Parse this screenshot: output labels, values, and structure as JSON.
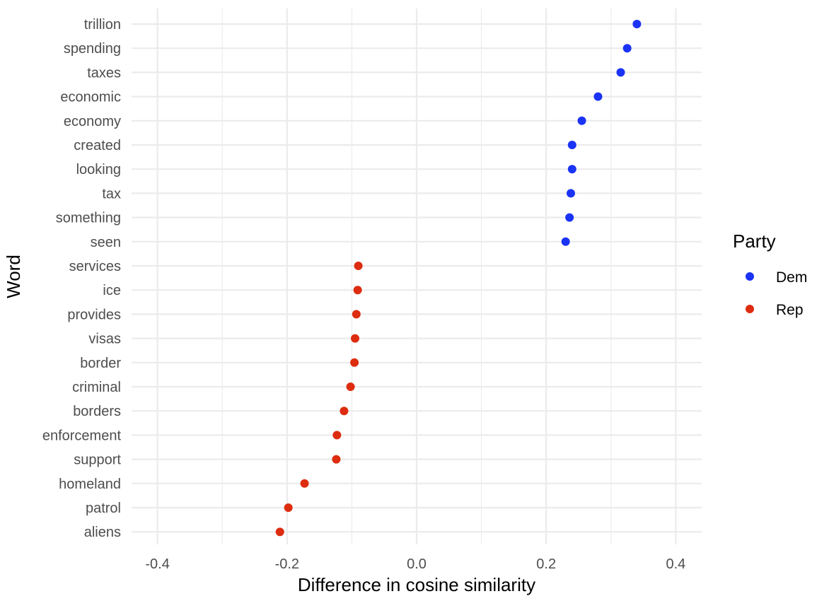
{
  "chart_data": {
    "type": "scatter",
    "title": "",
    "xlabel": "Difference in cosine similarity",
    "ylabel": "Word",
    "xlim": [
      -0.44,
      0.44
    ],
    "x_ticks": [
      -0.4,
      -0.2,
      0.0,
      0.2,
      0.4
    ],
    "x_tick_labels": [
      "-0.4",
      "-0.2",
      "0.0",
      "0.2",
      "0.4"
    ],
    "grid": true,
    "legend": {
      "title": "Party",
      "position": "right",
      "entries": [
        {
          "label": "Dem",
          "color": "#1a33f5"
        },
        {
          "label": "Rep",
          "color": "#dd2c0f"
        }
      ]
    },
    "categories": [
      "trillion",
      "spending",
      "taxes",
      "economic",
      "economy",
      "created",
      "looking",
      "tax",
      "something",
      "seen",
      "services",
      "ice",
      "provides",
      "visas",
      "border",
      "criminal",
      "borders",
      "enforcement",
      "support",
      "homeland",
      "patrol",
      "aliens"
    ],
    "points": [
      {
        "word": "trillion",
        "x": 0.34,
        "party": "Dem"
      },
      {
        "word": "spending",
        "x": 0.325,
        "party": "Dem"
      },
      {
        "word": "taxes",
        "x": 0.315,
        "party": "Dem"
      },
      {
        "word": "economic",
        "x": 0.28,
        "party": "Dem"
      },
      {
        "word": "economy",
        "x": 0.255,
        "party": "Dem"
      },
      {
        "word": "created",
        "x": 0.24,
        "party": "Dem"
      },
      {
        "word": "looking",
        "x": 0.24,
        "party": "Dem"
      },
      {
        "word": "tax",
        "x": 0.238,
        "party": "Dem"
      },
      {
        "word": "something",
        "x": 0.236,
        "party": "Dem"
      },
      {
        "word": "seen",
        "x": 0.23,
        "party": "Dem"
      },
      {
        "word": "services",
        "x": -0.09,
        "party": "Rep"
      },
      {
        "word": "ice",
        "x": -0.091,
        "party": "Rep"
      },
      {
        "word": "provides",
        "x": -0.093,
        "party": "Rep"
      },
      {
        "word": "visas",
        "x": -0.095,
        "party": "Rep"
      },
      {
        "word": "border",
        "x": -0.096,
        "party": "Rep"
      },
      {
        "word": "criminal",
        "x": -0.102,
        "party": "Rep"
      },
      {
        "word": "borders",
        "x": -0.112,
        "party": "Rep"
      },
      {
        "word": "enforcement",
        "x": -0.123,
        "party": "Rep"
      },
      {
        "word": "support",
        "x": -0.124,
        "party": "Rep"
      },
      {
        "word": "homeland",
        "x": -0.173,
        "party": "Rep"
      },
      {
        "word": "patrol",
        "x": -0.198,
        "party": "Rep"
      },
      {
        "word": "aliens",
        "x": -0.211,
        "party": "Rep"
      }
    ]
  }
}
